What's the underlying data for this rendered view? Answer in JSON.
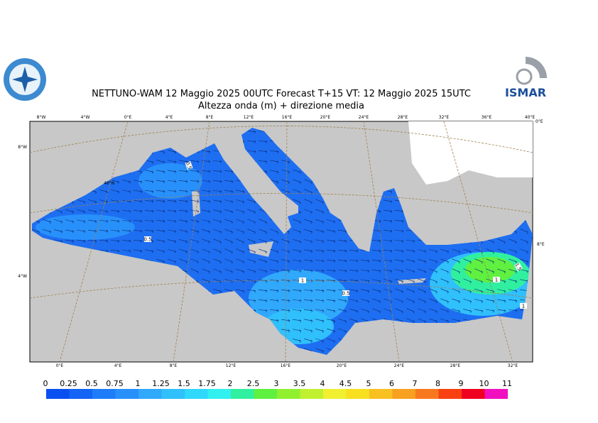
{
  "header": {
    "title": "NETTUNO-WAM  12   Maggio  2025 00UTC Forecast T+15 VT: 12   Maggio  2025 15UTC",
    "subtitle": "Altezza onda (m) + direzione media",
    "logo_right": "ISMAR"
  },
  "map": {
    "top_labels": [
      "8°W",
      "4°W",
      "0°E",
      "4°E",
      "8°E",
      "12°E",
      "16°E",
      "20°E",
      "24°E",
      "28°E",
      "32°E",
      "36°E",
      "40°E"
    ],
    "bottom_labels": [
      "0°E",
      "4°E",
      "8°E",
      "12°E",
      "16°E",
      "20°E",
      "24°E",
      "28°E",
      "32°E"
    ],
    "left_labels": [
      "8°W",
      "4°W"
    ],
    "right_labels": [
      "0°E",
      "8°E"
    ],
    "inner_labels": [
      "40°N"
    ],
    "contour_labels": [
      "0.5",
      "0.5",
      "1",
      "0.5",
      "1.5",
      "1",
      "1"
    ]
  },
  "legend": {
    "labels": [
      "0",
      "0.25",
      "0.5",
      "0.75",
      "1",
      "1.25",
      "1.5",
      "1.75",
      "2",
      "2.5",
      "3",
      "3.5",
      "4",
      "4.5",
      "5",
      "6",
      "7",
      "8",
      "9",
      "10",
      "11"
    ],
    "colors": [
      "#0a50f0",
      "#1464f5",
      "#1e7cf8",
      "#2890fa",
      "#30a8fc",
      "#30c0fc",
      "#30d8fc",
      "#30f0f0",
      "#30f0a0",
      "#60f040",
      "#90f030",
      "#c0f030",
      "#f0f030",
      "#f8e020",
      "#f8c020",
      "#f8a020",
      "#f87820",
      "#f84010",
      "#f00020",
      "#f010c0"
    ]
  }
}
